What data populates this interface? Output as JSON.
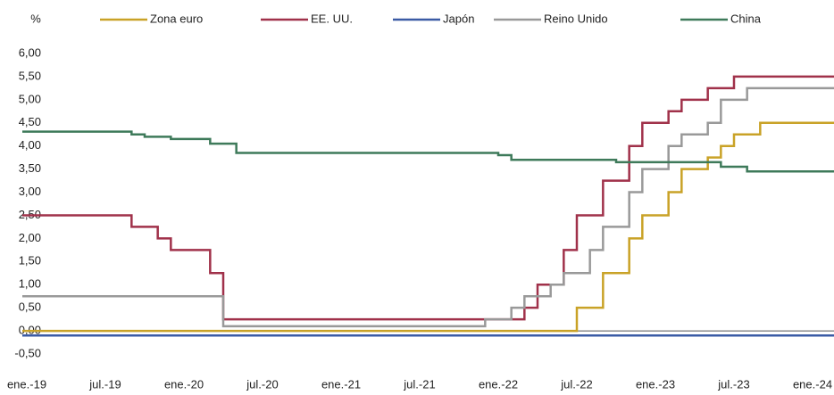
{
  "chart_data": {
    "type": "line",
    "step": true,
    "y_label": "%",
    "categories": [
      "ene.-19",
      null,
      null,
      null,
      null,
      null,
      "jul.-19",
      null,
      null,
      null,
      null,
      null,
      "ene.-20",
      null,
      null,
      null,
      null,
      null,
      "jul.-20",
      null,
      null,
      null,
      null,
      null,
      "ene.-21",
      null,
      null,
      null,
      null,
      null,
      "jul.-21",
      null,
      null,
      null,
      null,
      null,
      "ene.-22",
      null,
      null,
      null,
      null,
      null,
      "jul.-22",
      null,
      null,
      null,
      null,
      null,
      "ene.-23",
      null,
      null,
      null,
      null,
      null,
      "jul.-23",
      null,
      null,
      null,
      null,
      null,
      "ene.-24"
    ],
    "series": [
      {
        "name": "Zona euro",
        "color": "#c9a227",
        "values": [
          0,
          0,
          0,
          0,
          0,
          0,
          0,
          0,
          0,
          0,
          0,
          0,
          0,
          0,
          0,
          0,
          0,
          0,
          0,
          0,
          0,
          0,
          0,
          0,
          0,
          0,
          0,
          0,
          0,
          0,
          0,
          0,
          0,
          0,
          0,
          0,
          0,
          0,
          0,
          0,
          0,
          0,
          0.5,
          0.5,
          1.25,
          1.25,
          2,
          2.5,
          2.5,
          3,
          3.5,
          3.5,
          3.75,
          4,
          4.25,
          4.25,
          4.5,
          4.5,
          4.5,
          4.5,
          4.5
        ]
      },
      {
        "name": "EE. UU.",
        "color": "#a0314a",
        "values": [
          2.5,
          2.5,
          2.5,
          2.5,
          2.5,
          2.5,
          2.5,
          2.5,
          2.25,
          2.25,
          2,
          1.75,
          1.75,
          1.75,
          1.25,
          0.25,
          0.25,
          0.25,
          0.25,
          0.25,
          0.25,
          0.25,
          0.25,
          0.25,
          0.25,
          0.25,
          0.25,
          0.25,
          0.25,
          0.25,
          0.25,
          0.25,
          0.25,
          0.25,
          0.25,
          0.25,
          0.25,
          0.25,
          0.5,
          1,
          1,
          1.75,
          2.5,
          2.5,
          3.25,
          3.25,
          4,
          4.5,
          4.5,
          4.75,
          5,
          5,
          5.25,
          5.25,
          5.5,
          5.5,
          5.5,
          5.5,
          5.5,
          5.5,
          5.5
        ]
      },
      {
        "name": "Japón",
        "color": "#3b5ba5",
        "values": [
          -0.1,
          -0.1,
          -0.1,
          -0.1,
          -0.1,
          -0.1,
          -0.1,
          -0.1,
          -0.1,
          -0.1,
          -0.1,
          -0.1,
          -0.1,
          -0.1,
          -0.1,
          -0.1,
          -0.1,
          -0.1,
          -0.1,
          -0.1,
          -0.1,
          -0.1,
          -0.1,
          -0.1,
          -0.1,
          -0.1,
          -0.1,
          -0.1,
          -0.1,
          -0.1,
          -0.1,
          -0.1,
          -0.1,
          -0.1,
          -0.1,
          -0.1,
          -0.1,
          -0.1,
          -0.1,
          -0.1,
          -0.1,
          -0.1,
          -0.1,
          -0.1,
          -0.1,
          -0.1,
          -0.1,
          -0.1,
          -0.1,
          -0.1,
          -0.1,
          -0.1,
          -0.1,
          -0.1,
          -0.1,
          -0.1,
          -0.1,
          -0.1,
          -0.1,
          -0.1,
          -0.1
        ]
      },
      {
        "name": "Reino Unido",
        "color": "#999999",
        "values": [
          0.75,
          0.75,
          0.75,
          0.75,
          0.75,
          0.75,
          0.75,
          0.75,
          0.75,
          0.75,
          0.75,
          0.75,
          0.75,
          0.75,
          0.75,
          0.1,
          0.1,
          0.1,
          0.1,
          0.1,
          0.1,
          0.1,
          0.1,
          0.1,
          0.1,
          0.1,
          0.1,
          0.1,
          0.1,
          0.1,
          0.1,
          0.1,
          0.1,
          0.1,
          0.1,
          0.25,
          0.25,
          0.5,
          0.75,
          0.75,
          1,
          1.25,
          1.25,
          1.75,
          2.25,
          2.25,
          3,
          3.5,
          3.5,
          4,
          4.25,
          4.25,
          4.5,
          5,
          5,
          5.25,
          5.25,
          5.25,
          5.25,
          5.25,
          5.25
        ]
      },
      {
        "name": "China",
        "color": "#3e7a5a",
        "values": [
          4.31,
          4.31,
          4.31,
          4.31,
          4.31,
          4.31,
          4.31,
          4.31,
          4.25,
          4.2,
          4.2,
          4.15,
          4.15,
          4.15,
          4.05,
          4.05,
          3.85,
          3.85,
          3.85,
          3.85,
          3.85,
          3.85,
          3.85,
          3.85,
          3.85,
          3.85,
          3.85,
          3.85,
          3.85,
          3.85,
          3.85,
          3.85,
          3.85,
          3.85,
          3.85,
          3.85,
          3.8,
          3.7,
          3.7,
          3.7,
          3.7,
          3.7,
          3.7,
          3.7,
          3.7,
          3.65,
          3.65,
          3.65,
          3.65,
          3.65,
          3.65,
          3.65,
          3.65,
          3.55,
          3.55,
          3.45,
          3.45,
          3.45,
          3.45,
          3.45,
          3.45
        ]
      }
    ],
    "ylim": [
      -0.5,
      6
    ],
    "yticks": [
      {
        "value": -0.5,
        "label": "-0,50"
      },
      {
        "value": 0,
        "label": "0,00"
      },
      {
        "value": 0.5,
        "label": "0,50"
      },
      {
        "value": 1,
        "label": "1,00"
      },
      {
        "value": 1.5,
        "label": "1,50"
      },
      {
        "value": 2,
        "label": "2,00"
      },
      {
        "value": 2.5,
        "label": "2,50"
      },
      {
        "value": 3,
        "label": "3,00"
      },
      {
        "value": 3.5,
        "label": "3,50"
      },
      {
        "value": 4,
        "label": "4,00"
      },
      {
        "value": 4.5,
        "label": "4,50"
      },
      {
        "value": 5,
        "label": "5,00"
      },
      {
        "value": 5.5,
        "label": "5,50"
      },
      {
        "value": 6,
        "label": "6,00"
      }
    ],
    "grid": false,
    "legend": "top"
  }
}
